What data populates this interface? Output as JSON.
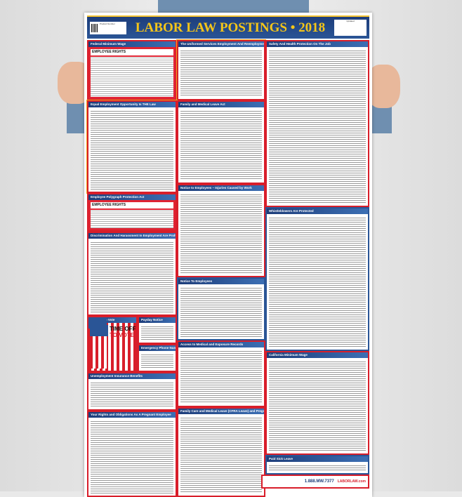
{
  "poster": {
    "title": "LABOR LAW POSTINGS • 2018",
    "badge_left": "Product Number",
    "badge_right": "Updated",
    "sections": [
      {
        "id": "federal-minimum-wage",
        "title": "Federal Minimum Wage",
        "subtitle": "EMPLOYEE RIGHTS"
      },
      {
        "id": "userra",
        "title": "The Uniformed Services Employment And Reemployment Rights Act"
      },
      {
        "id": "safety-health",
        "title": "Safety And Health Protection On The Job"
      },
      {
        "id": "eeo",
        "title": "Equal Employment Opportunity Is THE Law"
      },
      {
        "id": "fmla",
        "title": "Family and Medical Leave Act"
      },
      {
        "id": "polygraph",
        "title": "Employee Polygraph Protection Act",
        "subtitle": "EMPLOYEE RIGHTS"
      },
      {
        "id": "injuries-notice",
        "title": "Notice to Employees – Injuries Caused by Work"
      },
      {
        "id": "whistleblowers",
        "title": "Whistleblowers Are Protected"
      },
      {
        "id": "discrimination",
        "title": "Discrimination And Harassment In Employment Are Prohibited By Law"
      },
      {
        "id": "notice-employees",
        "title": "Notice To Employees"
      },
      {
        "id": "time-off-vote",
        "title": "Time Off to Vote"
      },
      {
        "id": "payday",
        "title": "Payday Notice"
      },
      {
        "id": "emergency",
        "title": "Emergency Phone Numbers"
      },
      {
        "id": "medical-records",
        "title": "Access to Medical and Exposure Records"
      },
      {
        "id": "unemployment",
        "title": "Unemployment Insurance Benefits"
      },
      {
        "id": "ca-minimum-wage",
        "title": "California Minimum Wage"
      },
      {
        "id": "pregnant-employee",
        "title": "Your Rights and Obligations As A Pregnant Employee"
      },
      {
        "id": "cfra",
        "title": "Family Care and Medical Leave (CFRA Leave) and Pregnancy Disability Leave"
      },
      {
        "id": "paid-sick-leave",
        "title": "Paid Sick Leave"
      }
    ],
    "vote_heading_1": "TIME OFF",
    "vote_heading_2": "TO VOTE",
    "footer_phone": "1.888.MW.7377",
    "footer_logo": "LABORLAW.com"
  }
}
